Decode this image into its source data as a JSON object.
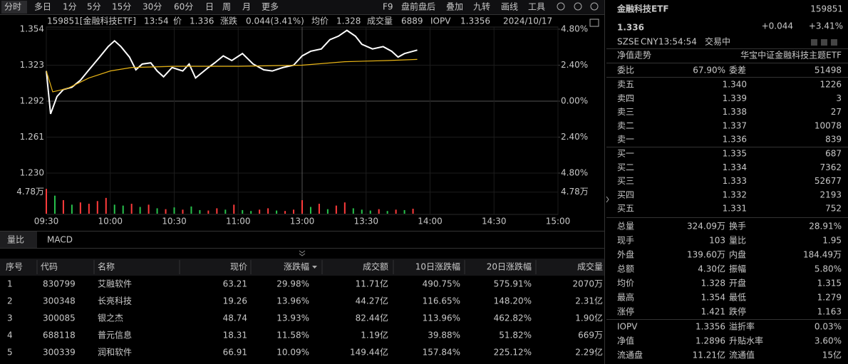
{
  "toolbar": {
    "periods": [
      "分时",
      "多日",
      "1分",
      "5分",
      "15分",
      "30分",
      "60分",
      "日",
      "周",
      "月",
      "更多"
    ],
    "tools": [
      "F9",
      "盘前盘后",
      "叠加",
      "九转",
      "画线",
      "工具"
    ]
  },
  "chart_data": {
    "type": "line",
    "header": {
      "security": "159851[金融科技ETF]",
      "time": "13:54",
      "price_label": "价",
      "price": "1.336",
      "change_label": "涨跌",
      "change": "0.044(3.41%)",
      "avg_label": "均价",
      "avg": "1.328",
      "volume_label": "成交量",
      "volume": "6889",
      "iopv_label": "IOPV",
      "iopv": "1.3356",
      "date": "2024/10/17"
    },
    "xlim": [
      0,
      240
    ],
    "xticks": [
      {
        "value": 0,
        "label": "09:30"
      },
      {
        "value": 30,
        "label": "10:00"
      },
      {
        "value": 60,
        "label": "10:30"
      },
      {
        "value": 90,
        "label": "11:00"
      },
      {
        "value": 120,
        "label": "13:00"
      },
      {
        "value": 150,
        "label": "13:30"
      },
      {
        "value": 180,
        "label": "14:00"
      },
      {
        "value": 210,
        "label": "14:30"
      },
      {
        "value": 240,
        "label": "15:00"
      }
    ],
    "ylim": [
      1.23,
      1.354
    ],
    "yticks": [
      1.354,
      1.323,
      1.292,
      1.261,
      {
        "value": 1.23,
        "label": "1.230"
      }
    ],
    "y2lim": [
      -4.8,
      4.8
    ],
    "y2ticks": [
      {
        "value": 4.8,
        "label": "4.80%"
      },
      {
        "value": 2.4,
        "label": "2.40%"
      },
      {
        "value": 0,
        "label": "0.00%"
      },
      {
        "value": -2.4,
        "label": "2.40%"
      },
      {
        "value": -4.8,
        "label": "4.80%"
      }
    ],
    "series": [
      {
        "color": "#ffffff",
        "x": [
          0,
          2,
          5,
          8,
          12,
          16,
          20,
          25,
          29,
          32,
          35,
          39,
          42,
          45,
          49,
          52,
          55,
          59,
          64,
          67,
          70,
          76,
          79,
          83,
          87,
          92,
          97,
          102,
          106,
          111,
          116,
          120,
          124,
          129,
          133,
          137,
          141,
          145,
          148,
          153,
          158,
          162,
          165,
          168,
          172,
          174
        ],
        "values": [
          1.318,
          1.281,
          1.296,
          1.302,
          1.304,
          1.31,
          1.319,
          1.33,
          1.339,
          1.344,
          1.339,
          1.33,
          1.319,
          1.324,
          1.325,
          1.318,
          1.313,
          1.321,
          1.318,
          1.324,
          1.312,
          1.321,
          1.325,
          1.331,
          1.327,
          1.333,
          1.324,
          1.319,
          1.318,
          1.321,
          1.323,
          1.331,
          1.335,
          1.337,
          1.345,
          1.348,
          1.353,
          1.348,
          1.341,
          1.337,
          1.339,
          1.335,
          1.33,
          1.333,
          1.335,
          1.336
        ]
      },
      {
        "color": "#e8b416",
        "x": [
          0,
          3,
          10,
          20,
          30,
          40,
          60,
          90,
          120,
          140,
          160,
          174
        ],
        "values": [
          1.318,
          1.3,
          1.303,
          1.312,
          1.318,
          1.321,
          1.322,
          1.322,
          1.323,
          1.326,
          1.327,
          1.328
        ]
      }
    ],
    "volume": {
      "ylim": [
        0,
        60000
      ],
      "yticks": [
        {
          "value": 47800,
          "label": "4.78万"
        }
      ],
      "x": [
        0,
        4,
        8,
        12,
        16,
        20,
        24,
        28,
        32,
        36,
        40,
        44,
        48,
        52,
        56,
        60,
        64,
        68,
        72,
        76,
        80,
        84,
        88,
        92,
        96,
        100,
        104,
        108,
        112,
        116,
        120,
        124,
        128,
        132,
        136,
        140,
        144,
        148,
        152,
        156,
        160,
        164,
        168,
        172
      ],
      "values": [
        55000,
        40000,
        30000,
        20000,
        25000,
        22000,
        28000,
        35000,
        20000,
        18000,
        22000,
        15000,
        20000,
        12000,
        10000,
        14000,
        9000,
        16000,
        8000,
        7000,
        12000,
        9000,
        20000,
        8000,
        6000,
        9000,
        12000,
        7000,
        6000,
        9000,
        30000,
        15000,
        22000,
        10000,
        18000,
        25000,
        12000,
        9000,
        7000,
        10000,
        6000,
        9000,
        8000,
        11000
      ],
      "colors": [
        "#ff3b3b",
        "#27c24c",
        "#ff3b3b",
        "#27c24c",
        "#ff3b3b",
        "#ff3b3b",
        "#ff3b3b",
        "#ff3b3b",
        "#27c24c",
        "#27c24c",
        "#ff3b3b",
        "#27c24c",
        "#ff3b3b",
        "#27c24c",
        "#ff3b3b",
        "#27c24c",
        "#ff3b3b",
        "#27c24c",
        "#27c24c",
        "#ff3b3b",
        "#ff3b3b",
        "#27c24c",
        "#ff3b3b",
        "#27c24c",
        "#27c24c",
        "#ff3b3b",
        "#ff3b3b",
        "#27c24c",
        "#ff3b3b",
        "#ff3b3b",
        "#ff3b3b",
        "#27c24c",
        "#ff3b3b",
        "#27c24c",
        "#ff3b3b",
        "#ff3b3b",
        "#27c24c",
        "#27c24c",
        "#27c24c",
        "#ff3b3b",
        "#27c24c",
        "#ff3b3b",
        "#27c24c",
        "#ff3b3b"
      ]
    }
  },
  "tabs": [
    "量比",
    "MACD"
  ],
  "table": {
    "headers": [
      "序号",
      "代码",
      "名称",
      "现价",
      "涨跌幅",
      "成交额",
      "10日涨跌幅",
      "20日涨跌幅",
      "成交量"
    ],
    "rows": [
      [
        "1",
        "830799",
        "艾融软件",
        "63.21",
        "29.98%",
        "11.71亿",
        "490.75%",
        "575.91%",
        "2070万"
      ],
      [
        "2",
        "300348",
        "长亮科技",
        "19.26",
        "13.96%",
        "44.27亿",
        "116.65%",
        "148.20%",
        "2.31亿"
      ],
      [
        "3",
        "300085",
        "银之杰",
        "48.74",
        "13.93%",
        "82.44亿",
        "113.96%",
        "462.82%",
        "1.90亿"
      ],
      [
        "4",
        "688118",
        "普元信息",
        "18.31",
        "11.58%",
        "1.19亿",
        "39.88%",
        "51.82%",
        "669万"
      ],
      [
        "5",
        "300339",
        "润和软件",
        "66.91",
        "10.09%",
        "149.44亿",
        "157.84%",
        "225.12%",
        "2.29亿"
      ]
    ]
  },
  "quote": {
    "name": "金融科技ETF",
    "code": "159851",
    "price": "1.336",
    "change": "+0.044",
    "change_pct": "+3.41%",
    "market": "SZSE",
    "currency": "CNY",
    "time": "13:54:54",
    "status": "交易中",
    "tab": "净值走势",
    "full_name": "华宝中证金融科技主题ETF"
  },
  "order_book": {
    "ratio_label": "委比",
    "ratio": "67.90%",
    "diff_label": "委差",
    "diff": "51498",
    "asks": [
      [
        "卖五",
        "1.340",
        "1226"
      ],
      [
        "卖四",
        "1.339",
        "3"
      ],
      [
        "卖三",
        "1.338",
        "27"
      ],
      [
        "卖二",
        "1.337",
        "10078"
      ],
      [
        "卖一",
        "1.336",
        "839"
      ]
    ],
    "bids": [
      [
        "买一",
        "1.335",
        "687"
      ],
      [
        "买二",
        "1.334",
        "7362"
      ],
      [
        "买三",
        "1.333",
        "52677"
      ],
      [
        "买四",
        "1.332",
        "2193"
      ],
      [
        "买五",
        "1.331",
        "752"
      ]
    ]
  },
  "stats": [
    [
      "总量",
      "324.09万",
      "换手",
      "28.91%"
    ],
    [
      "现手",
      "103",
      "量比",
      "1.95"
    ],
    [
      "外盘",
      "139.60万",
      "内盘",
      "184.49万"
    ],
    [
      "总额",
      "4.30亿",
      "振幅",
      "5.80%"
    ],
    [
      "均价",
      "1.328",
      "开盘",
      "1.315"
    ],
    [
      "最高",
      "1.354",
      "最低",
      "1.279"
    ],
    [
      "涨停",
      "1.421",
      "跌停",
      "1.163"
    ]
  ],
  "stats2": [
    [
      "IOPV",
      "1.3356",
      "溢折率",
      "0.03%"
    ],
    [
      "净值",
      "1.2896",
      "升贴水率",
      "3.60%"
    ],
    [
      "流通盘",
      "11.21亿",
      "流通值",
      "15亿"
    ]
  ]
}
